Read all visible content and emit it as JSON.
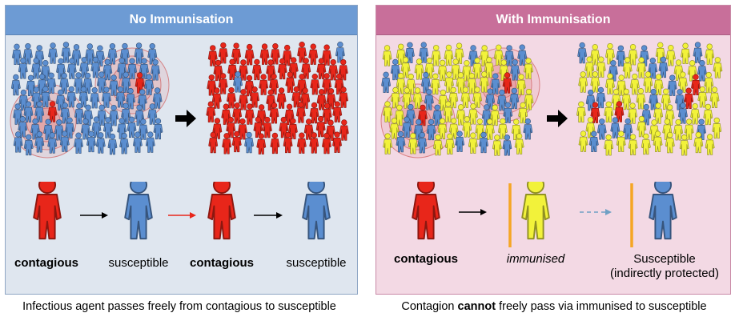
{
  "left": {
    "title": "No Immunisation",
    "labels": {
      "contagious_1": "contagious",
      "susceptible_1": "susceptible",
      "contagious_2": "contagious",
      "susceptible_2": "susceptible"
    },
    "caption": "Infectious agent passes freely from contagious to susceptible"
  },
  "right": {
    "title": "With Immunisation",
    "labels": {
      "contagious": "contagious",
      "immunised": "immunised",
      "susceptible": "Susceptible",
      "susceptible_note": "(indirectly protected)"
    },
    "caption_pre": "Contagion ",
    "caption_bold": "cannot",
    "caption_post": " freely pass via immunised to susceptible"
  },
  "colors": {
    "contagious": "#e8261a",
    "susceptible": "#5b8ed0",
    "immunised": "#f2f23a",
    "barrier": "#f5a623"
  }
}
